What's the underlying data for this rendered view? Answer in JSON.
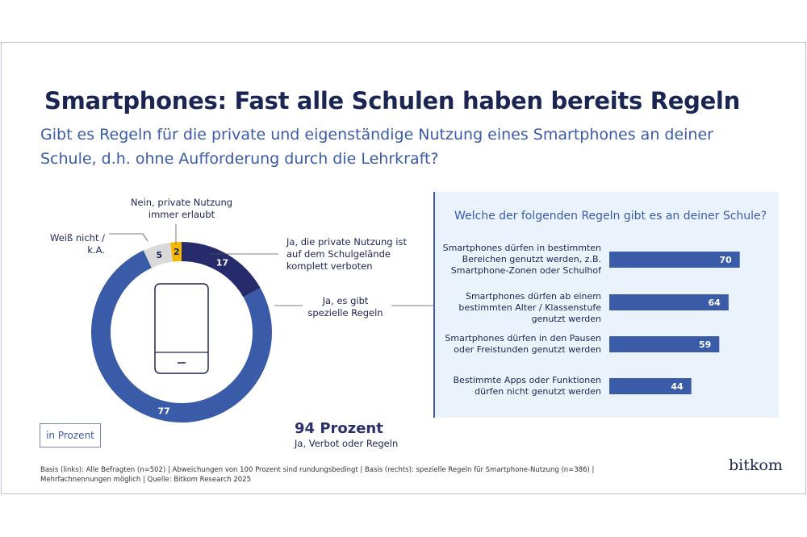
{
  "title": "Smartphones: Fast alle Schulen haben bereits Regeln",
  "subtitle": "Gibt es Regeln für die private und eigenständige Nutzung eines Smartphones an deiner Schule, d.h. ohne Aufforderung durch die Lehrkraft?",
  "unit_label": "in Prozent",
  "summary": {
    "value": "94 Prozent",
    "label": "Ja, Verbot oder Regeln"
  },
  "footnote": "Basis (links): Alle Befragten (n=502) | Abweichungen von 100 Prozent sind rundungsbedingt | Basis (rechts): spezielle Regeln für Smartphone-Nutzung (n=386) | Mehrfachnennungen möglich | Quelle: Bitkom Research 2025",
  "logo": "bitkom",
  "chart_data": [
    {
      "type": "pie",
      "variant": "donut",
      "unit": "Prozent",
      "slices": [
        {
          "label": "Ja, die private Nutzung ist auf dem Schulgelände komplett verboten",
          "value": 17,
          "color": "#252b6b"
        },
        {
          "label": "Ja, es gibt spezielle Regeln",
          "value": 77,
          "color": "#3a5ba8"
        },
        {
          "label": "Weiß nicht / k.A.",
          "value": 5,
          "color": "#d9d9d9"
        },
        {
          "label": "Nein, private Nutzung immer erlaubt",
          "value": 2,
          "color": "#f5b800"
        }
      ]
    },
    {
      "type": "bar",
      "orientation": "horizontal",
      "title": "Welche der folgenden Regeln gibt es an deiner Schule?",
      "color": "#3a5ba8",
      "xlim": [
        0,
        100
      ],
      "categories": [
        "Smartphones dürfen in bestimmten Bereichen genutzt werden, z.B. Smartphone-Zonen oder Schulhof",
        "Smartphones dürfen ab einem bestimmten Alter / Klassenstufe genutzt werden",
        "Smartphones dürfen in den Pausen oder Freistunden genutzt werden",
        "Bestimmte Apps oder Funktionen dürfen nicht genutzt werden"
      ],
      "values": [
        70,
        64,
        59,
        44
      ]
    }
  ]
}
